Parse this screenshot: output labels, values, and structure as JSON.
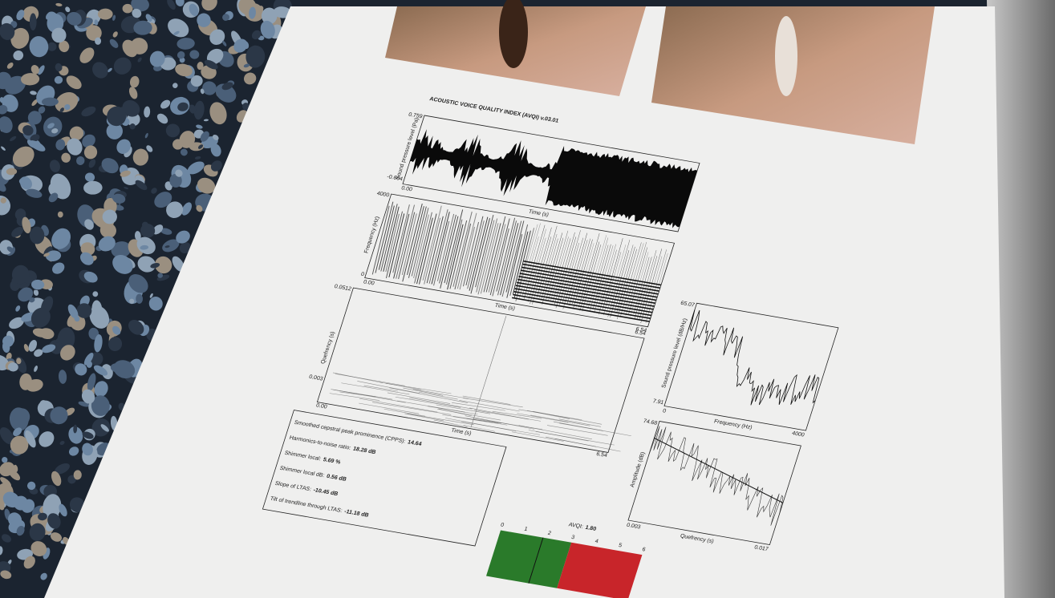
{
  "title": "ACOUSTIC VOICE QUALITY INDEX (AVQI) v.03.01",
  "waveform": {
    "y_label": "Sound pressure level (Pa)",
    "y_top": "0.759",
    "y_bottom": "-0.664",
    "x_start": "0.00",
    "x_end": "6.54",
    "x_label": "Time (s)"
  },
  "spectrogram": {
    "y_label": "Frequency (Hz)",
    "y_top": "4000",
    "y_bottom": "0",
    "x_start": "0.00",
    "x_end": "6.54",
    "x_label": "Time (s)"
  },
  "cepstrogram": {
    "y_label": "Quefrency (s)",
    "y_top": "0.0512",
    "y_mid": "0.003",
    "x_start": "0.00",
    "x_end": "6.54",
    "x_label": "Time (s)"
  },
  "ltas": {
    "y_label": "Sound pressure level (dB/Hz)",
    "y_top": "65.07",
    "y_bottom": "7.91",
    "x_start": "0",
    "x_end": "4000",
    "x_label": "Frequency (Hz)"
  },
  "cepstrum": {
    "y_label": "Amplitude (dB)",
    "y_top": "74.68",
    "x_start": "0.003",
    "x_end": "0.017",
    "x_label": "Quefrency (s)"
  },
  "measures": [
    {
      "label": "Smoothed cepstral peak prominence (CPPS):",
      "value": "14.64"
    },
    {
      "label": "Harmonics-to-noise ratio:",
      "value": "18.28 dB"
    },
    {
      "label": "Shimmer local:",
      "value": "5.69 %"
    },
    {
      "label": "Shimmer local dB:",
      "value": "0.56 dB"
    },
    {
      "label": "Slope of LTAS:",
      "value": "-10.45 dB"
    },
    {
      "label": "Tilt of trendline through LTAS:",
      "value": "-11.18 dB"
    }
  ],
  "avqi": {
    "label": "AVQI:",
    "value": "1.80",
    "scale": [
      "0",
      "1",
      "2",
      "3",
      "4",
      "5",
      "6"
    ]
  }
}
